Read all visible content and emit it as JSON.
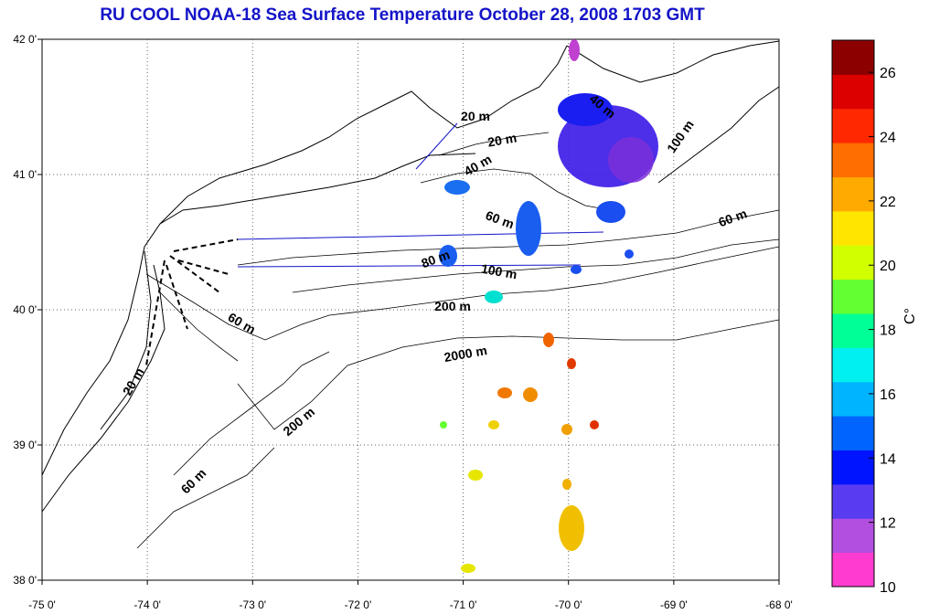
{
  "title": "RU COOL  NOAA-18 Sea Surface Temperature October 28, 2008 1703 GMT",
  "axes": {
    "x_ticks": [
      "-75 0'",
      "-74 0'",
      "-73 0'",
      "-72 0'",
      "-71 0'",
      "-70 0'",
      "-69 0'",
      "-68 0'"
    ],
    "y_ticks": [
      "42 0'",
      "41 0'",
      "40 0'",
      "39 0'",
      "38 0'"
    ],
    "x_range": [
      -75,
      -68
    ],
    "y_range": [
      38,
      42
    ],
    "grid": true
  },
  "contour_labels": [
    "20 m",
    "40 m",
    "60 m",
    "80 m",
    "100 m",
    "200 m",
    "2000 m",
    "20 m",
    "200 m",
    "60 m",
    "60 m",
    "40 m",
    "100 m",
    "60 m",
    "20 m"
  ],
  "colorbar": {
    "unit": "C°",
    "ticks": [
      "26",
      "24",
      "22",
      "20",
      "18",
      "16",
      "14",
      "12",
      "10"
    ],
    "range": [
      10,
      27
    ],
    "colors": [
      "#ff3ccf",
      "#b24ee0",
      "#5a3cf0",
      "#0014ff",
      "#0064ff",
      "#00b4ff",
      "#00f0f0",
      "#00ff96",
      "#64ff32",
      "#d2ff00",
      "#ffe600",
      "#ffaa00",
      "#ff6e00",
      "#ff2800",
      "#dc0000",
      "#8c0000"
    ]
  }
}
